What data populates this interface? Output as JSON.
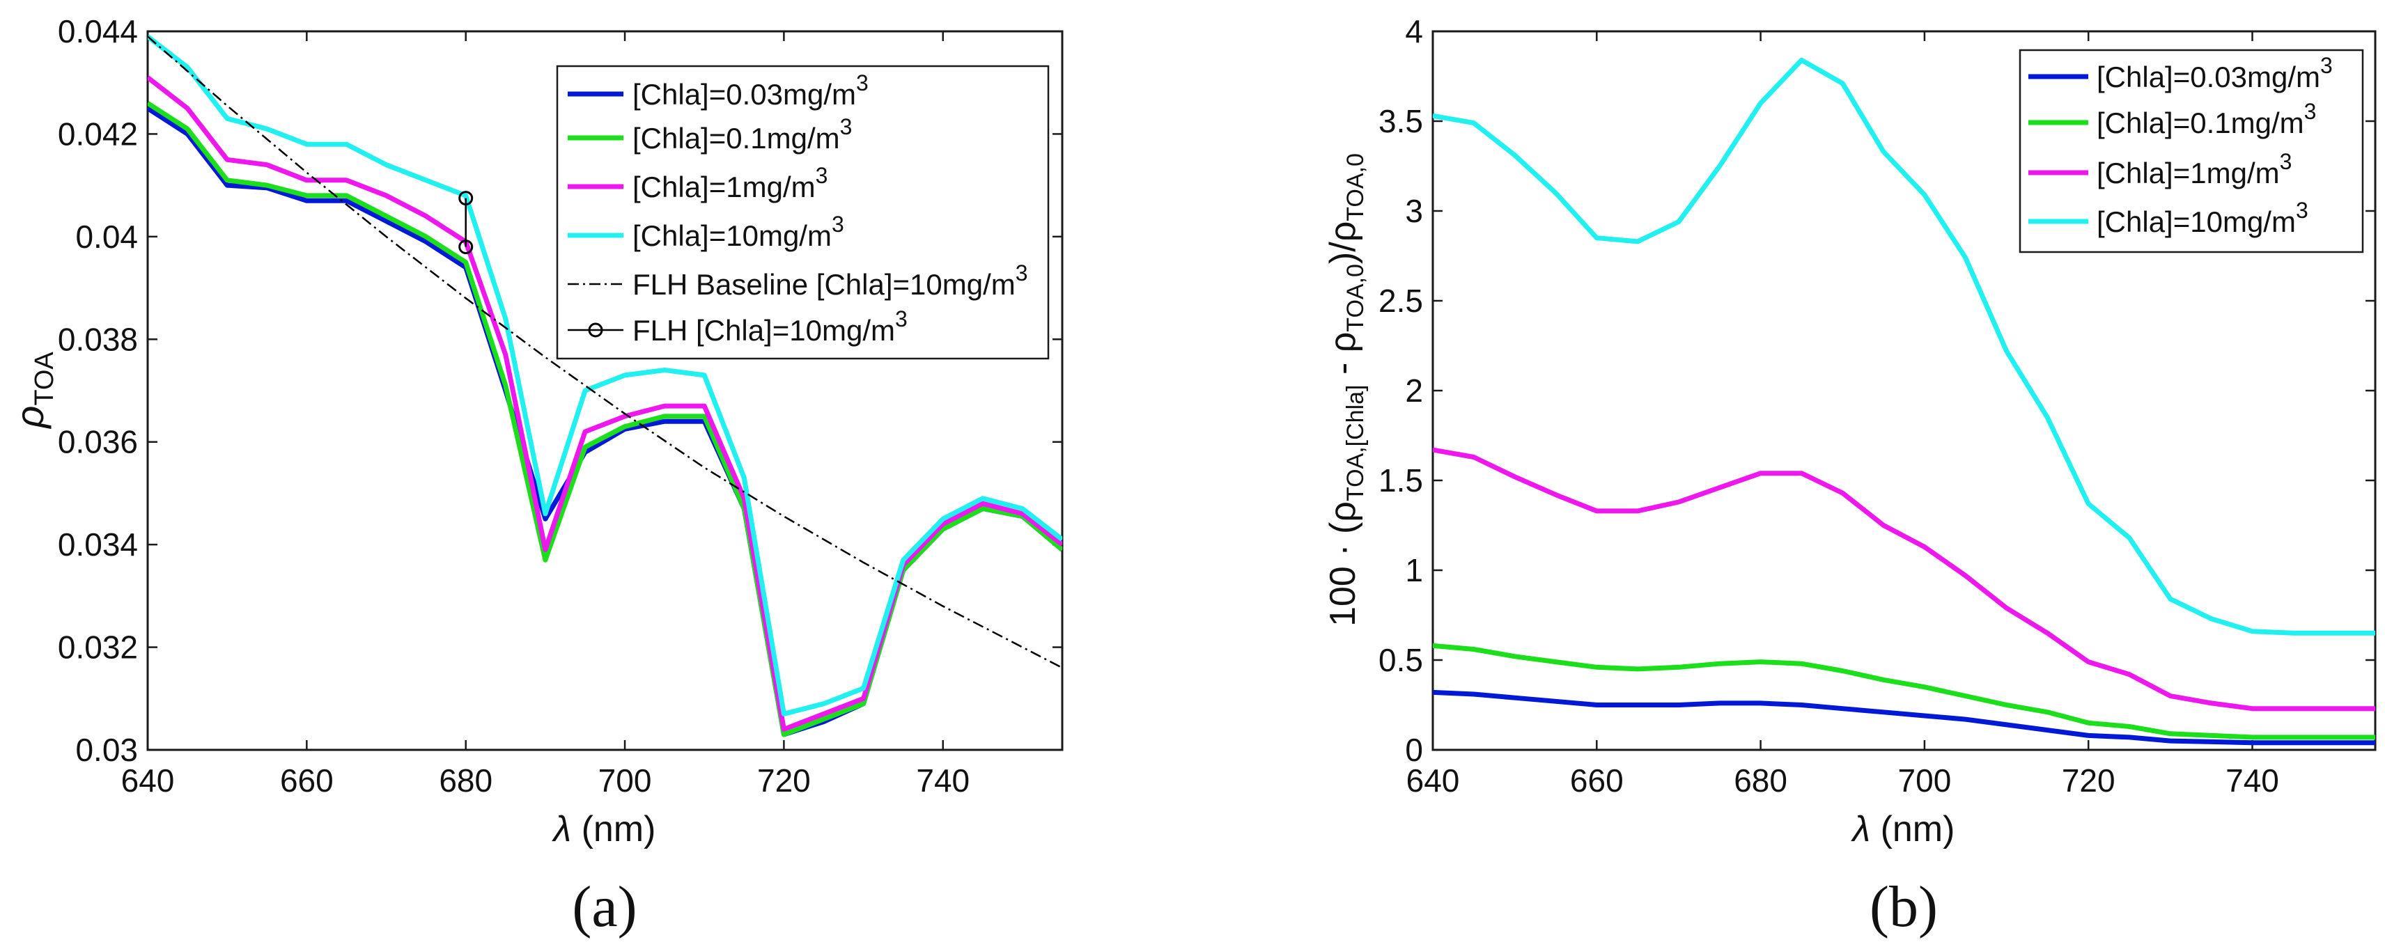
{
  "chart_data": [
    {
      "type": "line",
      "panel_label": "(a)",
      "xlabel_symbol": "λ",
      "xlabel_unit": " (nm)",
      "ylabel_symbol": "ρ",
      "ylabel_sub": "TOA",
      "xlim": [
        640,
        755
      ],
      "ylim": [
        0.03,
        0.044
      ],
      "xticks": [
        640,
        660,
        680,
        700,
        720,
        740
      ],
      "xtick_labels": [
        "640",
        "660",
        "680",
        "700",
        "720",
        "740"
      ],
      "yticks": [
        0.03,
        0.032,
        0.034,
        0.036,
        0.038,
        0.04,
        0.042,
        0.044
      ],
      "ytick_labels": [
        "0.03",
        "0.032",
        "0.034",
        "0.036",
        "0.038",
        "0.04",
        "0.042",
        "0.044"
      ],
      "legend_position": "top-right",
      "x": [
        640,
        645,
        650,
        655,
        660,
        665,
        670,
        675,
        680,
        685,
        690,
        695,
        700,
        705,
        710,
        715,
        720,
        725,
        730,
        735,
        740,
        745,
        750,
        755
      ],
      "series": [
        {
          "name": "[Chla]=0.03mg/m",
          "sup": "3",
          "color": "#0019d6",
          "values": [
            0.0425,
            0.042,
            0.041,
            0.04095,
            0.0407,
            0.0407,
            0.0403,
            0.0399,
            0.0394,
            0.037,
            0.0345,
            0.0358,
            0.03625,
            0.0364,
            0.0364,
            0.0347,
            0.0303,
            0.03055,
            0.0309,
            0.0335,
            0.0343,
            0.0347,
            0.03455,
            0.0339
          ]
        },
        {
          "name": "[Chla]=0.1mg/m",
          "sup": "3",
          "color": "#1adf1a",
          "values": [
            0.0426,
            0.0421,
            0.0411,
            0.041,
            0.0408,
            0.0408,
            0.0404,
            0.04,
            0.0395,
            0.0371,
            0.0337,
            0.0359,
            0.0363,
            0.0365,
            0.0365,
            0.0347,
            0.0303,
            0.0306,
            0.0309,
            0.0335,
            0.0343,
            0.0347,
            0.03455,
            0.0339
          ]
        },
        {
          "name": "[Chla]=1mg/m",
          "sup": "3",
          "color": "#ee17ee",
          "values": [
            0.0431,
            0.0425,
            0.0415,
            0.0414,
            0.0411,
            0.0411,
            0.0408,
            0.0404,
            0.0399,
            0.0377,
            0.0339,
            0.0362,
            0.0365,
            0.0367,
            0.0367,
            0.0349,
            0.0304,
            0.0307,
            0.031,
            0.0336,
            0.0344,
            0.0348,
            0.0346,
            0.034
          ]
        },
        {
          "name": "[Chla]=10mg/m",
          "sup": "3",
          "color": "#20f0f0",
          "values": [
            0.0439,
            0.0433,
            0.0423,
            0.0421,
            0.0418,
            0.0418,
            0.0414,
            0.0411,
            0.0408,
            0.0384,
            0.0346,
            0.037,
            0.0373,
            0.0374,
            0.0373,
            0.0353,
            0.0307,
            0.0309,
            0.0312,
            0.0337,
            0.0345,
            0.0349,
            0.0347,
            0.0341
          ]
        }
      ],
      "baseline": {
        "name": "FLH Baseline [Chla]=10mg/m",
        "sup": "3",
        "color": "#000000",
        "x": [
          640,
          650,
          660,
          670,
          680,
          690,
          700,
          710,
          720,
          730,
          740,
          750,
          755
        ],
        "values": [
          0.0439,
          0.04255,
          0.04125,
          0.04,
          0.0388,
          0.03765,
          0.03655,
          0.0355,
          0.03455,
          0.03365,
          0.0328,
          0.032,
          0.0316
        ]
      },
      "flh": {
        "name": "FLH [Chla]=10mg/m",
        "sup": "3",
        "color": "#000000",
        "x": 680,
        "y_top": 0.04075,
        "y_bottom": 0.0398
      }
    },
    {
      "type": "line",
      "panel_label": "(b)",
      "xlabel_symbol": "λ",
      "xlabel_unit": " (nm)",
      "ylabel_prefix": "100 · (ρ",
      "ylabel_sub1": "TOA,[Chla]",
      "ylabel_mid": " - ρ",
      "ylabel_sub2": "TOA,0",
      "ylabel_mid2": ")/ρ",
      "ylabel_sub3": "TOA,0",
      "xlim": [
        640,
        755
      ],
      "ylim": [
        0,
        4
      ],
      "xticks": [
        640,
        660,
        680,
        700,
        720,
        740
      ],
      "xtick_labels": [
        "640",
        "660",
        "680",
        "700",
        "720",
        "740"
      ],
      "yticks": [
        0,
        0.5,
        1,
        1.5,
        2,
        2.5,
        3,
        3.5,
        4
      ],
      "ytick_labels": [
        "0",
        "0.5",
        "1",
        "1.5",
        "2",
        "2.5",
        "3",
        "3.5",
        "4"
      ],
      "legend_position": "top-right",
      "x": [
        640,
        645,
        650,
        655,
        660,
        665,
        670,
        675,
        680,
        685,
        690,
        695,
        700,
        705,
        710,
        715,
        720,
        725,
        730,
        735,
        740,
        745,
        750,
        755
      ],
      "series": [
        {
          "name": "[Chla]=0.03mg/m",
          "sup": "3",
          "color": "#0019d6",
          "values": [
            0.32,
            0.31,
            0.29,
            0.27,
            0.25,
            0.25,
            0.25,
            0.26,
            0.26,
            0.25,
            0.23,
            0.21,
            0.19,
            0.17,
            0.14,
            0.11,
            0.08,
            0.07,
            0.05,
            0.045,
            0.04,
            0.04,
            0.04,
            0.04
          ]
        },
        {
          "name": "[Chla]=0.1mg/m",
          "sup": "3",
          "color": "#1adf1a",
          "values": [
            0.58,
            0.56,
            0.52,
            0.49,
            0.46,
            0.45,
            0.46,
            0.48,
            0.49,
            0.48,
            0.44,
            0.39,
            0.35,
            0.3,
            0.25,
            0.21,
            0.15,
            0.13,
            0.09,
            0.08,
            0.07,
            0.07,
            0.07,
            0.07
          ]
        },
        {
          "name": "[Chla]=1mg/m",
          "sup": "3",
          "color": "#ee17ee",
          "values": [
            1.67,
            1.63,
            1.52,
            1.42,
            1.33,
            1.33,
            1.38,
            1.46,
            1.54,
            1.54,
            1.43,
            1.25,
            1.13,
            0.97,
            0.79,
            0.65,
            0.49,
            0.42,
            0.3,
            0.26,
            0.23,
            0.23,
            0.23,
            0.23
          ]
        },
        {
          "name": "[Chla]=10mg/m",
          "sup": "3",
          "color": "#20f0f0",
          "values": [
            3.53,
            3.49,
            3.31,
            3.1,
            2.85,
            2.83,
            2.94,
            3.25,
            3.6,
            3.84,
            3.71,
            3.33,
            3.09,
            2.74,
            2.22,
            1.85,
            1.37,
            1.18,
            0.84,
            0.73,
            0.66,
            0.65,
            0.65,
            0.65
          ]
        }
      ]
    }
  ]
}
